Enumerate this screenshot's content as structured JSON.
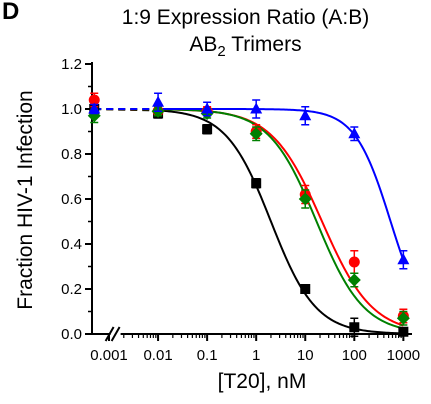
{
  "panel_letter": "D",
  "chart_data": {
    "type": "scatter",
    "title_line1": "1:9 Expression Ratio (A:B)",
    "title_line2_main": "AB",
    "title_line2_sub": "2",
    "title_line2_rest": " Trimers",
    "xlabel": "[T20], nM",
    "ylabel": "Fraction HIV-1 Infection",
    "xscale": "log",
    "xlim": [
      0.00045,
      1500
    ],
    "ylim": [
      0,
      1.2
    ],
    "x_ticks": [
      0.001,
      0.01,
      0.1,
      1,
      10,
      100,
      1000
    ],
    "x_tick_labels": [
      "0.001",
      "0.01",
      "0.1",
      "1",
      "10",
      "100",
      "1000"
    ],
    "y_ticks": [
      0.0,
      0.2,
      0.4,
      0.6,
      0.8,
      1.0,
      1.2
    ],
    "y_tick_labels": [
      "0.0",
      "0.2",
      "0.4",
      "0.6",
      "0.8",
      "1.0",
      "1.2"
    ],
    "axis_break": true,
    "grid": false,
    "series": [
      {
        "color": "#000000",
        "marker": "square",
        "x": [
          0.0005,
          0.01,
          0.1,
          1,
          10,
          100,
          1000
        ],
        "y": [
          1.0,
          0.98,
          0.91,
          0.67,
          0.2,
          0.03,
          0.01
        ],
        "err": [
          0.02,
          0.02,
          0.02,
          0.02,
          0.01,
          0.04,
          0.01
        ],
        "fit_ic50": 2.0,
        "fit_hill": 0.95
      },
      {
        "color": "#ff0000",
        "marker": "circle",
        "x": [
          0.0005,
          0.01,
          0.1,
          1,
          10,
          100,
          1000
        ],
        "y": [
          1.04,
          0.99,
          0.99,
          0.9,
          0.62,
          0.32,
          0.08
        ],
        "err": [
          0.03,
          0.02,
          0.02,
          0.03,
          0.04,
          0.05,
          0.03
        ],
        "fit_ic50": 22,
        "fit_hill": 0.85
      },
      {
        "color": "#008000",
        "marker": "diamond",
        "x": [
          0.0005,
          0.01,
          0.1,
          1,
          10,
          100,
          1000
        ],
        "y": [
          0.97,
          0.99,
          0.98,
          0.89,
          0.6,
          0.24,
          0.07
        ],
        "err": [
          0.03,
          0.02,
          0.02,
          0.03,
          0.04,
          0.03,
          0.03
        ],
        "fit_ic50": 17,
        "fit_hill": 0.9
      },
      {
        "color": "#0000ff",
        "marker": "triangle",
        "x": [
          0.0005,
          0.01,
          0.1,
          1,
          10,
          100,
          1000
        ],
        "y": [
          1.0,
          1.03,
          1.0,
          1.0,
          0.97,
          0.89,
          0.33
        ],
        "err": [
          0.02,
          0.04,
          0.03,
          0.04,
          0.04,
          0.03,
          0.04
        ],
        "fit_ic50": 550,
        "fit_hill": 1.2
      }
    ]
  }
}
